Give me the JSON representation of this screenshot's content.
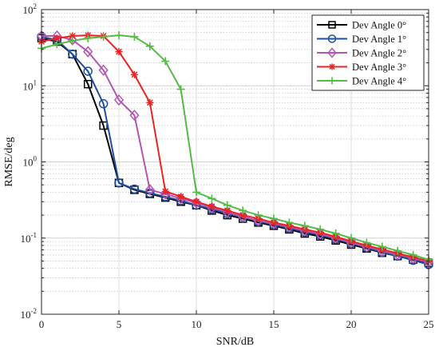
{
  "chart_data": {
    "type": "line",
    "xlabel": "SNR/dB",
    "ylabel": "RMSE/deg",
    "x_scale": "linear",
    "y_scale": "log",
    "xlim": [
      0,
      25
    ],
    "ylim": [
      0.01,
      100
    ],
    "x_ticks": [
      0,
      5,
      10,
      15,
      20,
      25
    ],
    "x_tick_labels": [
      "0",
      "5",
      "10",
      "15",
      "20",
      "25"
    ],
    "y_ticks": [
      0.01,
      0.1,
      1,
      10,
      100
    ],
    "y_tick_labels": [
      {
        "base": "10",
        "exp": "-2"
      },
      {
        "base": "10",
        "exp": "-1"
      },
      {
        "base": "10",
        "exp": "0"
      },
      {
        "base": "10",
        "exp": "1"
      },
      {
        "base": "10",
        "exp": "2"
      }
    ],
    "grid": true,
    "legend_position": "top-right",
    "x": [
      0,
      1,
      2,
      3,
      4,
      5,
      6,
      7,
      8,
      9,
      10,
      11,
      12,
      13,
      14,
      15,
      16,
      17,
      18,
      19,
      20,
      21,
      22,
      23,
      24,
      25
    ],
    "series": [
      {
        "name": "Dev Angle 0°",
        "color": "#000000",
        "marker": "square",
        "values": [
          42,
          38,
          26,
          10.5,
          3.0,
          0.53,
          0.43,
          0.38,
          0.34,
          0.3,
          0.27,
          0.23,
          0.2,
          0.18,
          0.16,
          0.145,
          0.13,
          0.115,
          0.105,
          0.093,
          0.082,
          0.073,
          0.064,
          0.058,
          0.052,
          0.047
        ]
      },
      {
        "name": "Dev Angle 1°",
        "color": "#1f4e9c",
        "marker": "circle",
        "values": [
          44,
          40,
          26,
          15.5,
          5.8,
          0.53,
          0.44,
          0.39,
          0.35,
          0.31,
          0.27,
          0.24,
          0.21,
          0.19,
          0.165,
          0.15,
          0.135,
          0.12,
          0.11,
          0.097,
          0.085,
          0.075,
          0.065,
          0.058,
          0.051,
          0.045
        ]
      },
      {
        "name": "Dev Angle 2°",
        "color": "#b455b4",
        "marker": "diamond",
        "values": [
          45,
          45,
          40,
          28,
          16,
          6.5,
          4.1,
          0.43,
          0.38,
          0.33,
          0.29,
          0.25,
          0.22,
          0.19,
          0.17,
          0.155,
          0.14,
          0.125,
          0.113,
          0.1,
          0.087,
          0.077,
          0.068,
          0.061,
          0.054,
          0.048
        ]
      },
      {
        "name": "Dev Angle 3°",
        "color": "#ee2222",
        "marker": "asterisk",
        "values": [
          38,
          42,
          45,
          46,
          45,
          28,
          14,
          6.0,
          0.41,
          0.35,
          0.3,
          0.26,
          0.23,
          0.2,
          0.18,
          0.16,
          0.145,
          0.13,
          0.118,
          0.104,
          0.091,
          0.08,
          0.071,
          0.063,
          0.056,
          0.05
        ]
      },
      {
        "name": "Dev Angle 4°",
        "color": "#55bb44",
        "marker": "plus",
        "values": [
          31,
          35,
          39,
          42,
          44,
          46,
          44,
          33,
          21,
          9.0,
          0.4,
          0.33,
          0.27,
          0.23,
          0.2,
          0.18,
          0.16,
          0.145,
          0.13,
          0.115,
          0.1,
          0.087,
          0.077,
          0.068,
          0.06,
          0.052
        ]
      }
    ]
  }
}
